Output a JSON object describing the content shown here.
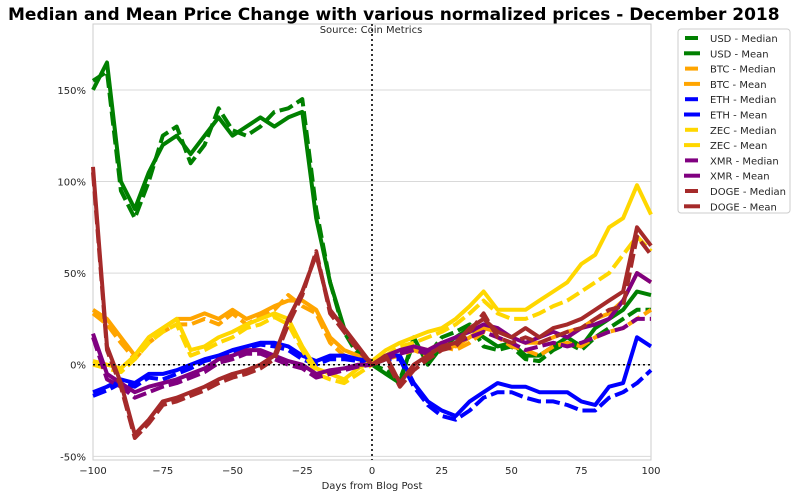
{
  "chart_data": {
    "type": "line",
    "title": "Median and Mean Price Change with various normalized prices - December 2018",
    "subtitle": "Source: Coin Metrics",
    "xlabel": "Days from Blog Post",
    "ylabel": "",
    "xlim": [
      -100,
      100
    ],
    "ylim": [
      -52,
      186
    ],
    "x_ticks": [
      -100,
      -75,
      -50,
      -25,
      0,
      25,
      50,
      75,
      100
    ],
    "x_tick_labels": [
      "−100",
      "−75",
      "−50",
      "−25",
      "0",
      "25",
      "50",
      "75",
      "100"
    ],
    "y_ticks": [
      -50,
      0,
      50,
      100,
      150
    ],
    "y_tick_labels": [
      "-50%",
      "0%",
      "50%",
      "100%",
      "150%"
    ],
    "grid": "horizontal",
    "reference_lines": {
      "x": 0,
      "y": 0,
      "style": "dotted",
      "color": "#000000"
    },
    "legend_position": "outside-top-right",
    "x": [
      -100,
      -95,
      -90,
      -85,
      -80,
      -75,
      -70,
      -65,
      -60,
      -55,
      -50,
      -45,
      -40,
      -35,
      -30,
      -25,
      -20,
      -15,
      -10,
      -5,
      0,
      5,
      10,
      15,
      20,
      25,
      30,
      35,
      40,
      45,
      50,
      55,
      60,
      65,
      70,
      75,
      80,
      85,
      90,
      95,
      100
    ],
    "series": [
      {
        "name": "USD - Median",
        "color": "#008000",
        "style": "dashed",
        "values": [
          155,
          160,
          95,
          80,
          100,
          125,
          130,
          110,
          120,
          140,
          128,
          125,
          130,
          138,
          140,
          145,
          85,
          45,
          18,
          5,
          0,
          -3,
          -8,
          12,
          5,
          15,
          18,
          22,
          10,
          8,
          10,
          3,
          2,
          8,
          12,
          8,
          15,
          20,
          25,
          30,
          30
        ]
      },
      {
        "name": "USD - Mean",
        "color": "#008000",
        "style": "solid",
        "values": [
          150,
          165,
          100,
          85,
          105,
          120,
          125,
          115,
          125,
          135,
          125,
          130,
          135,
          130,
          135,
          138,
          80,
          45,
          20,
          8,
          0,
          -5,
          -10,
          15,
          0,
          10,
          15,
          20,
          15,
          10,
          12,
          5,
          5,
          10,
          15,
          10,
          20,
          25,
          30,
          40,
          38
        ]
      },
      {
        "name": "BTC - Median",
        "color": "#FFA500",
        "style": "dashed",
        "values": [
          28,
          22,
          12,
          3,
          12,
          18,
          22,
          22,
          25,
          22,
          28,
          22,
          26,
          30,
          38,
          32,
          28,
          12,
          5,
          3,
          0,
          3,
          5,
          8,
          5,
          10,
          8,
          12,
          18,
          15,
          10,
          8,
          5,
          10,
          12,
          10,
          15,
          18,
          20,
          25,
          30
        ]
      },
      {
        "name": "BTC - Mean",
        "color": "#FFA500",
        "style": "solid",
        "values": [
          30,
          25,
          15,
          5,
          15,
          20,
          25,
          25,
          28,
          25,
          30,
          25,
          28,
          32,
          35,
          35,
          30,
          15,
          8,
          5,
          2,
          5,
          8,
          10,
          8,
          12,
          10,
          15,
          20,
          18,
          15,
          12,
          12,
          15,
          18,
          20,
          25,
          28,
          35,
          50,
          45
        ]
      },
      {
        "name": "ETH - Median",
        "color": "#0000FF",
        "style": "dashed",
        "values": [
          -17,
          -14,
          -10,
          -12,
          -7,
          -8,
          -5,
          -2,
          2,
          4,
          7,
          9,
          11,
          10,
          8,
          3,
          0,
          3,
          3,
          2,
          0,
          3,
          3,
          -12,
          -22,
          -28,
          -30,
          -25,
          -18,
          -15,
          -15,
          -18,
          -20,
          -20,
          -22,
          -25,
          -25,
          -18,
          -15,
          -10,
          -3
        ]
      },
      {
        "name": "ETH - Mean",
        "color": "#0000FF",
        "style": "solid",
        "values": [
          -15,
          -12,
          -8,
          -10,
          -5,
          -5,
          -3,
          0,
          3,
          5,
          8,
          10,
          12,
          12,
          10,
          5,
          2,
          5,
          5,
          3,
          2,
          5,
          5,
          -10,
          -20,
          -25,
          -28,
          -20,
          -15,
          -10,
          -12,
          -12,
          -15,
          -15,
          -15,
          -20,
          -22,
          -12,
          -10,
          15,
          10
        ]
      },
      {
        "name": "ZEC - Median",
        "color": "#FFD700",
        "style": "dashed",
        "values": [
          0,
          -2,
          -4,
          3,
          12,
          18,
          22,
          5,
          8,
          12,
          15,
          20,
          22,
          26,
          22,
          8,
          -5,
          -8,
          -10,
          -5,
          0,
          5,
          10,
          12,
          15,
          18,
          22,
          28,
          35,
          28,
          25,
          25,
          28,
          32,
          35,
          40,
          45,
          50,
          60,
          70,
          62
        ]
      },
      {
        "name": "ZEC - Mean",
        "color": "#FFD700",
        "style": "solid",
        "values": [
          2,
          0,
          -2,
          5,
          15,
          20,
          25,
          8,
          10,
          15,
          18,
          22,
          25,
          28,
          25,
          10,
          -2,
          -5,
          -8,
          -2,
          2,
          8,
          12,
          15,
          18,
          20,
          25,
          32,
          40,
          30,
          30,
          30,
          35,
          40,
          45,
          55,
          60,
          75,
          80,
          98,
          82
        ]
      },
      {
        "name": "XMR - Median",
        "color": "#800080",
        "style": "dashed",
        "values": [
          15,
          -8,
          -12,
          -18,
          -15,
          -12,
          -10,
          -7,
          -4,
          1,
          3,
          6,
          6,
          3,
          0,
          -2,
          -7,
          -5,
          -3,
          -1,
          0,
          3,
          6,
          8,
          6,
          10,
          12,
          15,
          18,
          15,
          12,
          8,
          10,
          12,
          10,
          12,
          15,
          18,
          20,
          25,
          25
        ]
      },
      {
        "name": "XMR - Mean",
        "color": "#800080",
        "style": "solid",
        "values": [
          17,
          -5,
          -10,
          -15,
          -12,
          -10,
          -8,
          -5,
          -2,
          3,
          5,
          8,
          8,
          5,
          2,
          0,
          -5,
          -3,
          -2,
          0,
          0,
          5,
          8,
          10,
          8,
          12,
          15,
          18,
          22,
          20,
          15,
          12,
          15,
          18,
          15,
          20,
          22,
          25,
          35,
          50,
          45
        ]
      },
      {
        "name": "DOGE - Median",
        "color": "#A52A2A",
        "style": "dashed",
        "values": [
          105,
          8,
          -12,
          -40,
          -32,
          -22,
          -20,
          -17,
          -14,
          -10,
          -7,
          -5,
          -2,
          3,
          22,
          38,
          62,
          28,
          18,
          8,
          0,
          3,
          -12,
          -3,
          3,
          8,
          10,
          18,
          28,
          15,
          12,
          15,
          12,
          15,
          18,
          20,
          25,
          30,
          32,
          70,
          60
        ]
      },
      {
        "name": "DOGE - Mean",
        "color": "#A52A2A",
        "style": "solid",
        "values": [
          108,
          10,
          -10,
          -38,
          -30,
          -20,
          -18,
          -15,
          -12,
          -8,
          -5,
          -3,
          0,
          5,
          25,
          40,
          60,
          30,
          20,
          10,
          0,
          5,
          -10,
          0,
          5,
          10,
          12,
          20,
          25,
          18,
          15,
          20,
          15,
          20,
          22,
          25,
          30,
          35,
          40,
          75,
          65
        ]
      }
    ]
  }
}
